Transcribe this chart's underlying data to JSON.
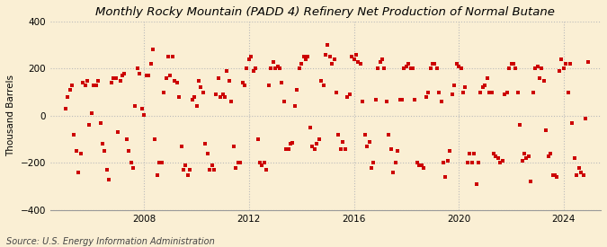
{
  "title": "Monthly Rocky Mountain (PADD 4) Refinery Net Production of Normal Butane",
  "ylabel": "Thousand Barrels",
  "source": "Source: U.S. Energy Information Administration",
  "background_color": "#faefd4",
  "plot_bg_color": "#faefd4",
  "marker_color": "#cc0000",
  "marker_size": 12,
  "ylim": [
    -400,
    400
  ],
  "yticks": [
    -400,
    -200,
    0,
    200,
    400
  ],
  "grid_color": "#bbbbbb",
  "title_fontsize": 9.5,
  "label_fontsize": 7.5,
  "source_fontsize": 7,
  "xtick_years": [
    2008,
    2012,
    2016,
    2020,
    2024
  ],
  "data": {
    "2005-01": 30,
    "2005-02": 80,
    "2005-03": 110,
    "2005-04": 130,
    "2005-05": -80,
    "2005-06": -150,
    "2005-07": -240,
    "2005-08": -160,
    "2005-09": 140,
    "2005-10": 130,
    "2005-11": 150,
    "2005-12": -40,
    "2006-01": 10,
    "2006-02": 130,
    "2006-03": 130,
    "2006-04": 150,
    "2006-05": -30,
    "2006-06": -120,
    "2006-07": -150,
    "2006-08": -230,
    "2006-09": -270,
    "2006-10": 140,
    "2006-11": 160,
    "2006-12": 160,
    "2007-01": -70,
    "2007-02": 150,
    "2007-03": 170,
    "2007-04": 180,
    "2007-05": -100,
    "2007-06": -150,
    "2007-07": -200,
    "2007-08": -220,
    "2007-09": 40,
    "2007-10": 200,
    "2007-11": 180,
    "2007-12": 30,
    "2008-01": 5,
    "2008-02": 170,
    "2008-03": 170,
    "2008-04": 220,
    "2008-05": 280,
    "2008-06": -100,
    "2008-07": -250,
    "2008-08": -200,
    "2008-09": -200,
    "2008-10": 100,
    "2008-11": 160,
    "2008-12": 250,
    "2009-01": 170,
    "2009-02": 250,
    "2009-03": 150,
    "2009-04": 140,
    "2009-05": 80,
    "2009-06": -130,
    "2009-07": -230,
    "2009-08": -210,
    "2009-09": -250,
    "2009-10": -230,
    "2009-11": 70,
    "2009-12": 80,
    "2010-01": 40,
    "2010-02": 150,
    "2010-03": 120,
    "2010-04": 100,
    "2010-05": -120,
    "2010-06": -160,
    "2010-07": -230,
    "2010-08": -210,
    "2010-09": -230,
    "2010-10": 90,
    "2010-11": 160,
    "2010-12": 80,
    "2011-01": 90,
    "2011-02": 80,
    "2011-03": 190,
    "2011-04": 150,
    "2011-05": 60,
    "2011-06": -130,
    "2011-07": -220,
    "2011-08": -200,
    "2011-09": -200,
    "2011-10": 140,
    "2011-11": 130,
    "2011-12": 200,
    "2012-01": 240,
    "2012-02": 250,
    "2012-03": 190,
    "2012-04": 200,
    "2012-05": -100,
    "2012-06": -200,
    "2012-07": -210,
    "2012-08": -200,
    "2012-09": -230,
    "2012-10": 130,
    "2012-11": 200,
    "2012-12": 230,
    "2013-01": 200,
    "2013-02": 210,
    "2013-03": 200,
    "2013-04": 140,
    "2013-05": 60,
    "2013-06": -140,
    "2013-07": -140,
    "2013-08": -120,
    "2013-09": -115,
    "2013-10": 40,
    "2013-11": 110,
    "2013-12": 200,
    "2014-01": 220,
    "2014-02": 250,
    "2014-03": 240,
    "2014-04": 250,
    "2014-05": -50,
    "2014-06": -130,
    "2014-07": -140,
    "2014-08": -120,
    "2014-09": -100,
    "2014-10": 150,
    "2014-11": 130,
    "2014-12": 260,
    "2015-01": 300,
    "2015-02": 250,
    "2015-03": 220,
    "2015-04": 240,
    "2015-05": 100,
    "2015-06": -80,
    "2015-07": -140,
    "2015-08": -110,
    "2015-09": -140,
    "2015-10": 80,
    "2015-11": 90,
    "2015-12": 250,
    "2016-01": 240,
    "2016-02": 260,
    "2016-03": 230,
    "2016-04": 220,
    "2016-05": 60,
    "2016-06": -80,
    "2016-07": -130,
    "2016-08": -110,
    "2016-09": -220,
    "2016-10": -200,
    "2016-11": 70,
    "2016-12": 200,
    "2017-01": 230,
    "2017-02": 240,
    "2017-03": 200,
    "2017-04": 60,
    "2017-05": -80,
    "2017-06": -140,
    "2017-07": -240,
    "2017-08": -200,
    "2017-09": -150,
    "2017-10": 70,
    "2017-11": 70,
    "2017-12": 200,
    "2018-01": 210,
    "2018-02": 220,
    "2018-03": 200,
    "2018-04": 200,
    "2018-05": 70,
    "2018-06": -200,
    "2018-07": -210,
    "2018-08": -210,
    "2018-09": -220,
    "2018-10": 80,
    "2018-11": 100,
    "2018-12": 200,
    "2019-01": 220,
    "2019-02": 220,
    "2019-03": 200,
    "2019-04": 100,
    "2019-05": 60,
    "2019-06": -200,
    "2019-07": -260,
    "2019-08": -190,
    "2019-09": -150,
    "2019-10": 90,
    "2019-11": 130,
    "2019-12": 220,
    "2020-01": 210,
    "2020-02": 200,
    "2020-03": 100,
    "2020-04": 120,
    "2020-05": -200,
    "2020-06": -160,
    "2020-07": -200,
    "2020-08": -160,
    "2020-09": -290,
    "2020-10": -200,
    "2020-11": 100,
    "2020-12": 120,
    "2021-01": 130,
    "2021-02": 160,
    "2021-03": 100,
    "2021-04": 100,
    "2021-05": -160,
    "2021-06": -170,
    "2021-07": -180,
    "2021-08": -200,
    "2021-09": -190,
    "2021-10": 90,
    "2021-11": 100,
    "2021-12": 200,
    "2022-01": 220,
    "2022-02": 220,
    "2022-03": 200,
    "2022-04": 100,
    "2022-05": -40,
    "2022-06": -190,
    "2022-07": -160,
    "2022-08": -180,
    "2022-09": -170,
    "2022-10": -280,
    "2022-11": 100,
    "2022-12": 200,
    "2023-01": 210,
    "2023-02": 160,
    "2023-03": 200,
    "2023-04": 150,
    "2023-05": -60,
    "2023-06": -170,
    "2023-07": -160,
    "2023-08": -250,
    "2023-09": -250,
    "2023-10": -260,
    "2023-11": 190,
    "2023-12": 240,
    "2024-01": 200,
    "2024-02": 220,
    "2024-03": 100,
    "2024-04": 220,
    "2024-05": -30,
    "2024-06": -180,
    "2024-07": -250,
    "2024-08": -220,
    "2024-09": -240,
    "2024-10": -250,
    "2024-11": -10,
    "2024-12": 230
  }
}
